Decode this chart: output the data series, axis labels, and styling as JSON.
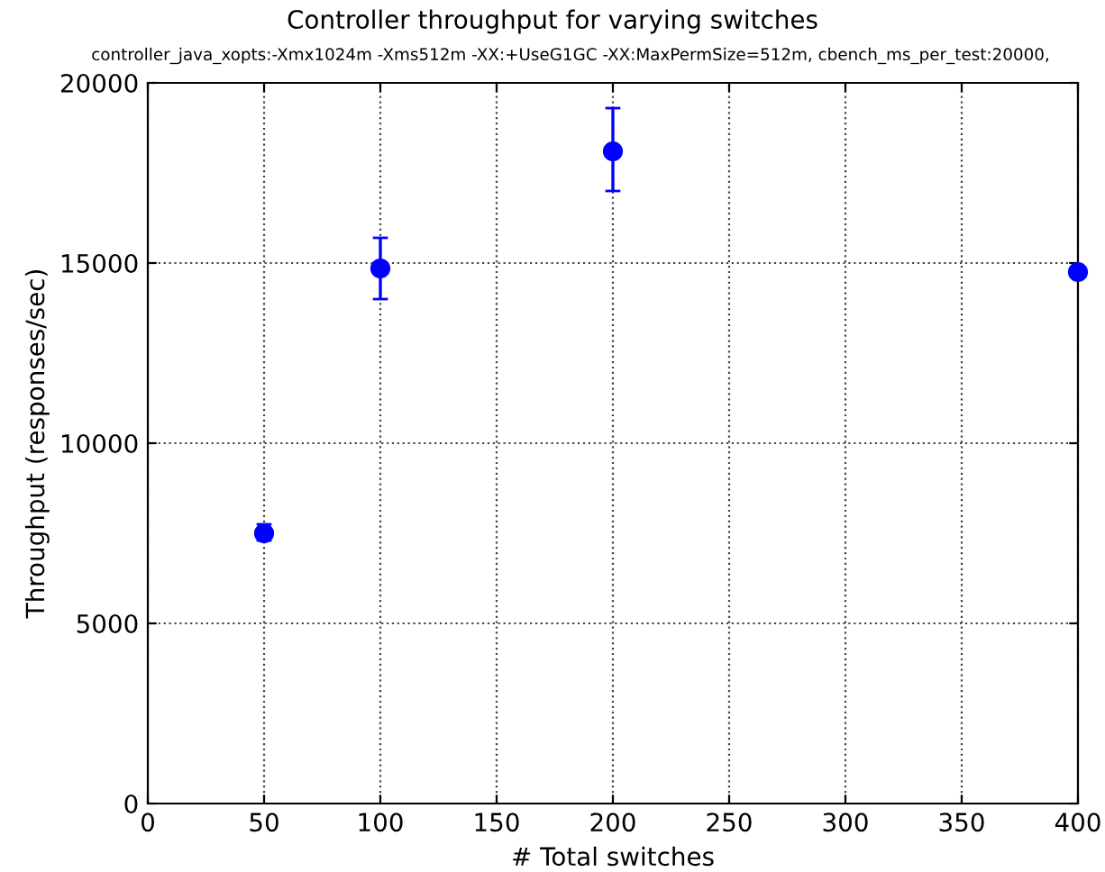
{
  "chart_data": {
    "type": "scatter",
    "title": "Controller throughput for varying switches",
    "subtitle": "controller_java_xopts:-Xmx1024m -Xms512m -XX:+UseG1GC -XX:MaxPermSize=512m, cbench_ms_per_test:20000,",
    "xlabel": "# Total switches",
    "ylabel": "Throughput (responses/sec)",
    "x": [
      50,
      100,
      200,
      400
    ],
    "series": [
      {
        "color": "#0000ff",
        "values": [
          7500,
          14850,
          18100,
          14750
        ],
        "errors": [
          [
            7300,
            7750
          ],
          [
            14000,
            15700
          ],
          [
            17000,
            19300
          ],
          null
        ]
      }
    ],
    "xlim": [
      0,
      400
    ],
    "ylim": [
      0,
      20000
    ],
    "xticks": [
      0,
      50,
      100,
      150,
      200,
      250,
      300,
      350,
      400
    ],
    "yticks": [
      0,
      5000,
      10000,
      15000,
      20000
    ],
    "grid": true,
    "marker": "circle"
  }
}
